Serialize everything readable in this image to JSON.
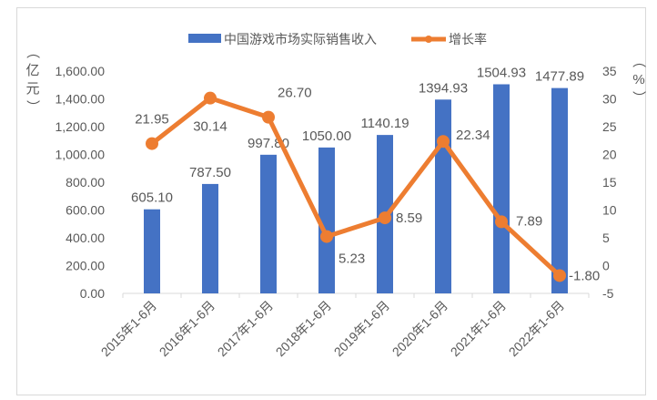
{
  "chart_data": {
    "type": "bar+line",
    "categories": [
      "2015年1-6月",
      "2016年1-6月",
      "2017年1-6月",
      "2018年1-6月",
      "2019年1-6月",
      "2020年1-6月",
      "2021年1-6月",
      "2022年1-6月"
    ],
    "series": [
      {
        "name": "中国游戏市场实际销售收入",
        "type": "bar",
        "axis": "left",
        "values": [
          605.1,
          787.5,
          997.8,
          1050.0,
          1140.19,
          1394.93,
          1504.93,
          1477.89
        ],
        "labels": [
          "605.10",
          "787.50",
          "997.80",
          "1050.00",
          "1140.19",
          "1394.93",
          "1504.93",
          "1477.89"
        ],
        "color": "#4472C4"
      },
      {
        "name": "增长率",
        "type": "line",
        "axis": "right",
        "values": [
          21.95,
          30.14,
          26.7,
          5.23,
          8.59,
          22.34,
          7.89,
          -1.8
        ],
        "labels": [
          "21.95",
          "30.14",
          "26.70",
          "5.23",
          "8.59",
          "22.34",
          "7.89",
          "-1.80"
        ],
        "color": "#ED7D31"
      }
    ],
    "y_left": {
      "label": "（亿元）",
      "ylim": [
        0,
        1600
      ],
      "ticks": [
        "0.00",
        "200.00",
        "400.00",
        "600.00",
        "800.00",
        "1,000.00",
        "1,200.00",
        "1,400.00",
        "1,600.00"
      ]
    },
    "y_right": {
      "label": "（%）",
      "ylim": [
        -5,
        35
      ],
      "ticks": [
        "-5",
        "0",
        "5",
        "10",
        "15",
        "20",
        "25",
        "30",
        "35"
      ]
    },
    "legend": "top",
    "grid": false
  }
}
